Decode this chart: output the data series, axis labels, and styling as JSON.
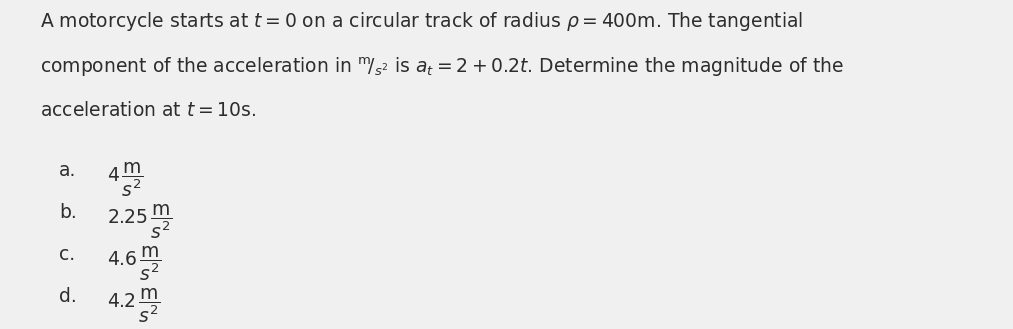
{
  "bg_color": "#f0f0f0",
  "text_color": "#2d2d2d",
  "title_line1": "A motorcycle starts at $t = 0$ on a circular track of radius $\\rho = 400$m. The tangential",
  "title_line2": "component of the acceleration in $^{\\mathrm{m}}\\!/_{s^2}$ is $a_t = 2 + 0.2t$. Determine the magnitude of the",
  "title_line3": "acceleration at $t = 10$s.",
  "options": [
    {
      "label": "a.",
      "value": "$4\\,\\dfrac{\\mathrm{m}}{s^2}$"
    },
    {
      "label": "b.",
      "value": "$2.25\\,\\dfrac{\\mathrm{m}}{s^2}$"
    },
    {
      "label": "c.",
      "value": "$4.6\\,\\dfrac{\\mathrm{m}}{s^2}$"
    },
    {
      "label": "d.",
      "value": "$4.2\\,\\dfrac{\\mathrm{m}}{s^2}$"
    }
  ],
  "title_fontsize": 13.5,
  "option_fontsize": 13.5,
  "option_label_fontsize": 13.5
}
